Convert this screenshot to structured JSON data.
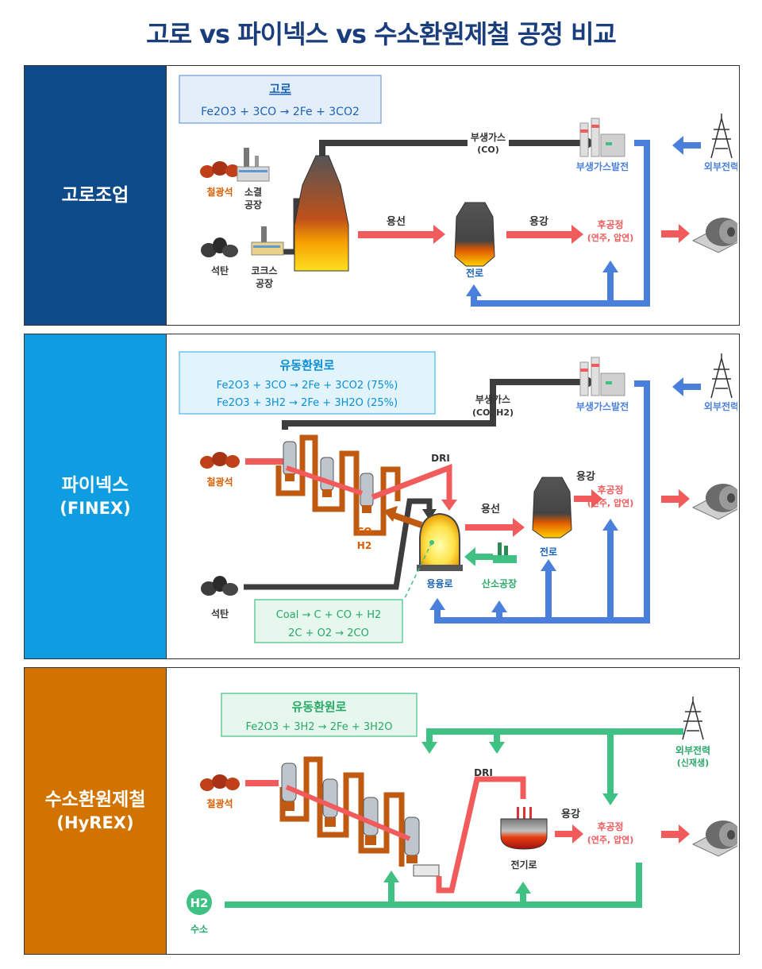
{
  "title": "고로 vs 파이넥스 vs 수소환원제철 공정 비교",
  "colors": {
    "navy": "#0d4a8a",
    "cyan": "#0d9de0",
    "orange": "#d27300",
    "blue_line": "#4a7fdb",
    "red_line": "#f25b5b",
    "green_line": "#3fc183",
    "dark_line": "#3d3d3d"
  },
  "bf": {
    "side_label": "고로조업",
    "box_title": "고로",
    "equation": "Fe2O3 + 3CO → 2Fe + 3CO2",
    "iron_ore": "철광석",
    "coal": "석탄",
    "sinter": [
      "소결",
      "공장"
    ],
    "coke": [
      "코크스",
      "공장"
    ],
    "byproduct_gas": [
      "부생가스",
      "(CO)"
    ],
    "power_plant": "부생가스발전",
    "external_power": "외부전력",
    "hot_metal": "용선",
    "molten_steel": "용강",
    "converter": "전로",
    "post_process": [
      "후공정",
      "(연주, 압연)"
    ]
  },
  "finex": {
    "side_label": "파이넥스",
    "side_sub": "(FINEX)",
    "box_title": "유동환원로",
    "equation1": "Fe2O3 + 3CO → 2Fe + 3CO2 (75%)",
    "equation2": "Fe2O3 + 3H2 → 2Fe + 3H2O (25%)",
    "iron_ore": "철광석",
    "coal": "석탄",
    "byproduct_gas": [
      "부생가스",
      "(CO, H2)"
    ],
    "power_plant": "부생가스발전",
    "external_power": "외부전력",
    "dri": "DRI",
    "co_h2": [
      "CO",
      "H2"
    ],
    "hot_metal": "용선",
    "molten_steel": "용강",
    "melter": "용융로",
    "oxygen_plant": "산소공장",
    "converter": "전로",
    "post_process": [
      "후공정",
      "(연주, 압연)"
    ],
    "coal_eq1": "Coal → C + CO + H2",
    "coal_eq2": "2C + O2 → 2CO"
  },
  "hyrex": {
    "side_label": "수소환원제철",
    "side_sub": "(HyREX)",
    "box_title": "유동환원로",
    "equation": "Fe2O3 + 3H2 → 2Fe + 3H2O",
    "iron_ore": "철광석",
    "dri": "DRI",
    "external_power": [
      "외부전력",
      "(신재생)"
    ],
    "eaf": "전기로",
    "molten_steel": "용강",
    "post_process": [
      "후공정",
      "(연주, 압연)"
    ],
    "h2_badge": "H2",
    "hydrogen": "수소"
  }
}
